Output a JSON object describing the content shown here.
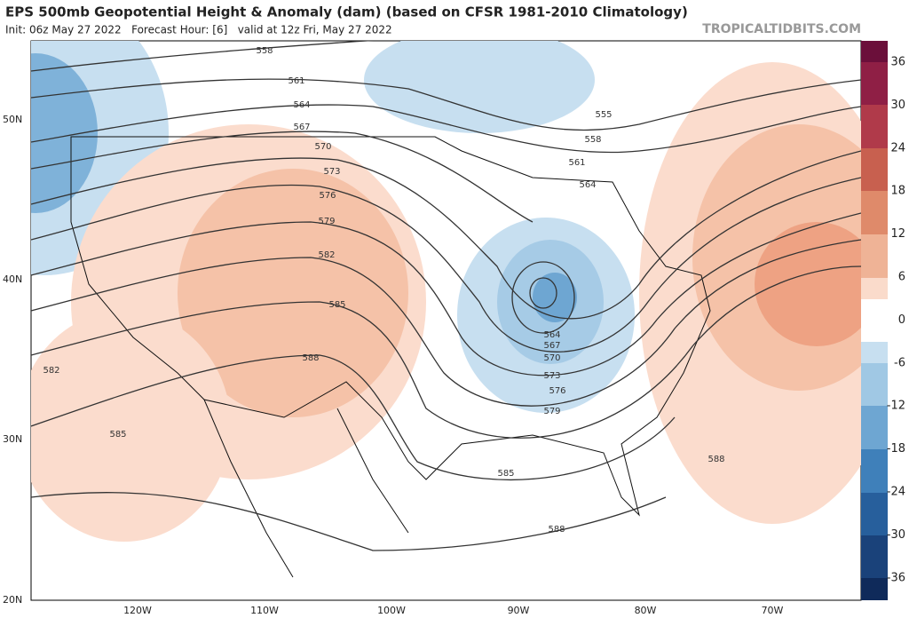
{
  "header": {
    "title": "EPS 500mb Geopotential Height & Anomaly (dam) (based on CFSR 1981-2010 Climatology)",
    "subtitle": "Init: 06z May 27 2022   Forecast Hour: [6]   valid at 12z Fri, May 27 2022",
    "source": "TROPICALTIDBITS.COM"
  },
  "latitude_labels": [
    "50N",
    "40N",
    "30N",
    "20N"
  ],
  "longitude_labels": [
    "120W",
    "110W",
    "100W",
    "90W",
    "80W",
    "70W"
  ],
  "colorbar_labels": [
    36,
    30,
    24,
    18,
    12,
    6,
    0,
    -6,
    -12,
    -18,
    -24,
    -30,
    -36
  ],
  "contour_labels": [
    558,
    561,
    564,
    567,
    570,
    573,
    576,
    579,
    582,
    585,
    588,
    582,
    585,
    555,
    558,
    561,
    564,
    564,
    567,
    570,
    573,
    576,
    579,
    585,
    588,
    588
  ]
}
